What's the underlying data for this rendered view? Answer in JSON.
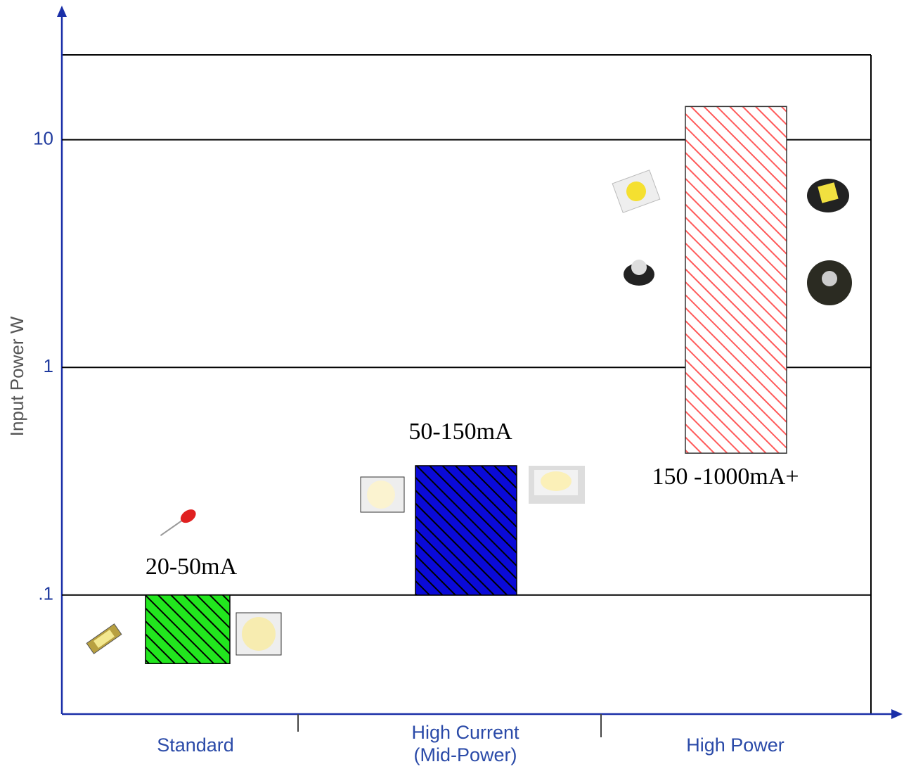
{
  "chart_data": {
    "type": "floating-bar",
    "y_label": "Input Power W",
    "categories": [
      "Standard",
      "High Current\n(Mid-Power)",
      "High Power"
    ],
    "values": [
      [
        0.05,
        0.1
      ],
      [
        0.1,
        0.37
      ],
      [
        0.42,
        14
      ]
    ],
    "annotations": [
      "20-50mA",
      "50-150mA",
      "150 -1000mA+"
    ],
    "colors": [
      "#22e61e",
      "#0a0ad8",
      "#ffffff"
    ],
    "hatch_colors": [
      "#000000",
      "#000000",
      "#ff5a5a"
    ],
    "log_y": true,
    "ylim": [
      0.03,
      23.6
    ],
    "yticks": [
      {
        "value": 0.1,
        "label": ".1"
      },
      1,
      10
    ],
    "grid": true
  }
}
